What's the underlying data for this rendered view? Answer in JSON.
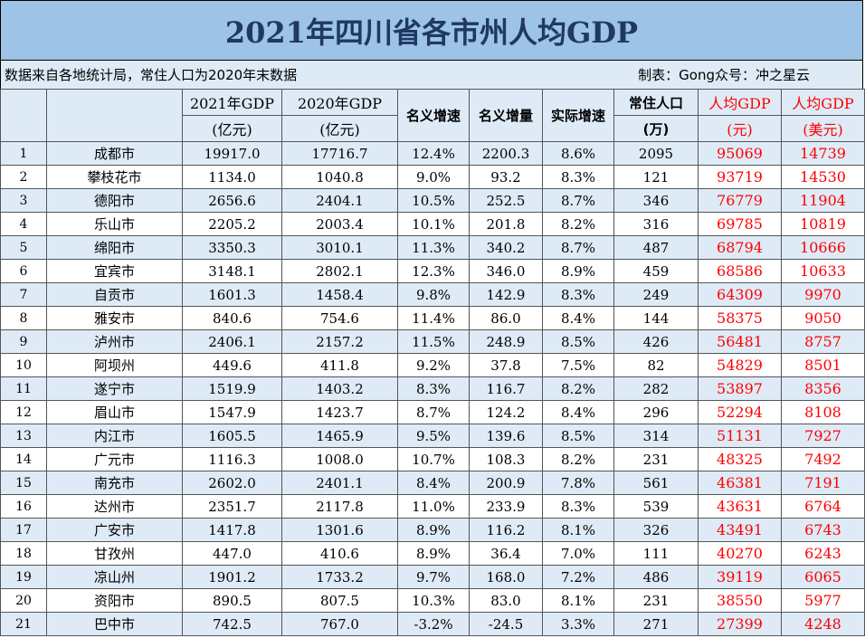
{
  "title": "2021年四川省各市州人均GDP",
  "source_note": "数据来自各地统计局，常住人口为2020年末数据",
  "author_note": "制表：Gong众号：冲之星云",
  "header": {
    "gdp2021_l1": "2021年GDP",
    "gdp2021_l2": "(亿元)",
    "gdp2020_l1": "2020年GDP",
    "gdp2020_l2": "(亿元)",
    "nominal_growth": "名义增速",
    "nominal_increase": "名义增量",
    "real_growth": "实际增速",
    "pop_l1": "常住人口",
    "pop_l2": "(万)",
    "pc_cny_l1": "人均GDP",
    "pc_cny_l2": "(元)",
    "pc_usd_l1": "人均GDP",
    "pc_usd_l2": "(美元)"
  },
  "rows": [
    {
      "idx": "1",
      "city": "成都市",
      "gdp2021": "19917.0",
      "gdp2020": "17716.7",
      "ng": "12.4%",
      "ni": "2200.3",
      "rg": "8.6%",
      "pop": "2095",
      "cny": "95069",
      "usd": "14739"
    },
    {
      "idx": "2",
      "city": "攀枝花市",
      "gdp2021": "1134.0",
      "gdp2020": "1040.8",
      "ng": "9.0%",
      "ni": "93.2",
      "rg": "8.3%",
      "pop": "121",
      "cny": "93719",
      "usd": "14530"
    },
    {
      "idx": "3",
      "city": "德阳市",
      "gdp2021": "2656.6",
      "gdp2020": "2404.1",
      "ng": "10.5%",
      "ni": "252.5",
      "rg": "8.7%",
      "pop": "346",
      "cny": "76779",
      "usd": "11904"
    },
    {
      "idx": "4",
      "city": "乐山市",
      "gdp2021": "2205.2",
      "gdp2020": "2003.4",
      "ng": "10.1%",
      "ni": "201.8",
      "rg": "8.2%",
      "pop": "316",
      "cny": "69785",
      "usd": "10819"
    },
    {
      "idx": "5",
      "city": "绵阳市",
      "gdp2021": "3350.3",
      "gdp2020": "3010.1",
      "ng": "11.3%",
      "ni": "340.2",
      "rg": "8.7%",
      "pop": "487",
      "cny": "68794",
      "usd": "10666"
    },
    {
      "idx": "6",
      "city": "宜宾市",
      "gdp2021": "3148.1",
      "gdp2020": "2802.1",
      "ng": "12.3%",
      "ni": "346.0",
      "rg": "8.9%",
      "pop": "459",
      "cny": "68586",
      "usd": "10633"
    },
    {
      "idx": "7",
      "city": "自贡市",
      "gdp2021": "1601.3",
      "gdp2020": "1458.4",
      "ng": "9.8%",
      "ni": "142.9",
      "rg": "8.3%",
      "pop": "249",
      "cny": "64309",
      "usd": "9970"
    },
    {
      "idx": "8",
      "city": "雅安市",
      "gdp2021": "840.6",
      "gdp2020": "754.6",
      "ng": "11.4%",
      "ni": "86.0",
      "rg": "8.4%",
      "pop": "144",
      "cny": "58375",
      "usd": "9050"
    },
    {
      "idx": "9",
      "city": "泸州市",
      "gdp2021": "2406.1",
      "gdp2020": "2157.2",
      "ng": "11.5%",
      "ni": "248.9",
      "rg": "8.5%",
      "pop": "426",
      "cny": "56481",
      "usd": "8757"
    },
    {
      "idx": "10",
      "city": "阿坝州",
      "gdp2021": "449.6",
      "gdp2020": "411.8",
      "ng": "9.2%",
      "ni": "37.8",
      "rg": "7.5%",
      "pop": "82",
      "cny": "54829",
      "usd": "8501"
    },
    {
      "idx": "11",
      "city": "遂宁市",
      "gdp2021": "1519.9",
      "gdp2020": "1403.2",
      "ng": "8.3%",
      "ni": "116.7",
      "rg": "8.2%",
      "pop": "282",
      "cny": "53897",
      "usd": "8356"
    },
    {
      "idx": "12",
      "city": "眉山市",
      "gdp2021": "1547.9",
      "gdp2020": "1423.7",
      "ng": "8.7%",
      "ni": "124.2",
      "rg": "8.4%",
      "pop": "296",
      "cny": "52294",
      "usd": "8108"
    },
    {
      "idx": "13",
      "city": "内江市",
      "gdp2021": "1605.5",
      "gdp2020": "1465.9",
      "ng": "9.5%",
      "ni": "139.6",
      "rg": "8.5%",
      "pop": "314",
      "cny": "51131",
      "usd": "7927"
    },
    {
      "idx": "14",
      "city": "广元市",
      "gdp2021": "1116.3",
      "gdp2020": "1008.0",
      "ng": "10.7%",
      "ni": "108.3",
      "rg": "8.2%",
      "pop": "231",
      "cny": "48325",
      "usd": "7492"
    },
    {
      "idx": "15",
      "city": "南充市",
      "gdp2021": "2602.0",
      "gdp2020": "2401.1",
      "ng": "8.4%",
      "ni": "200.9",
      "rg": "7.8%",
      "pop": "561",
      "cny": "46381",
      "usd": "7191"
    },
    {
      "idx": "16",
      "city": "达州市",
      "gdp2021": "2351.7",
      "gdp2020": "2117.8",
      "ng": "11.0%",
      "ni": "233.9",
      "rg": "8.3%",
      "pop": "539",
      "cny": "43631",
      "usd": "6764"
    },
    {
      "idx": "17",
      "city": "广安市",
      "gdp2021": "1417.8",
      "gdp2020": "1301.6",
      "ng": "8.9%",
      "ni": "116.2",
      "rg": "8.1%",
      "pop": "326",
      "cny": "43491",
      "usd": "6743"
    },
    {
      "idx": "18",
      "city": "甘孜州",
      "gdp2021": "447.0",
      "gdp2020": "410.6",
      "ng": "8.9%",
      "ni": "36.4",
      "rg": "7.0%",
      "pop": "111",
      "cny": "40270",
      "usd": "6243"
    },
    {
      "idx": "19",
      "city": "凉山州",
      "gdp2021": "1901.2",
      "gdp2020": "1733.2",
      "ng": "9.7%",
      "ni": "168.0",
      "rg": "7.2%",
      "pop": "486",
      "cny": "39119",
      "usd": "6065"
    },
    {
      "idx": "20",
      "city": "资阳市",
      "gdp2021": "890.5",
      "gdp2020": "807.5",
      "ng": "10.3%",
      "ni": "83.0",
      "rg": "8.1%",
      "pop": "231",
      "cny": "38550",
      "usd": "5977"
    },
    {
      "idx": "21",
      "city": "巴中市",
      "gdp2021": "742.5",
      "gdp2020": "767.0",
      "ng": "-3.2%",
      "ni": "-24.5",
      "rg": "3.3%",
      "pop": "271",
      "cny": "27399",
      "usd": "4248"
    }
  ],
  "colors": {
    "title_bg": "#9dc3e6",
    "title_text": "#1f3864",
    "band": "#deebf7",
    "highlight": "#ff0000"
  }
}
